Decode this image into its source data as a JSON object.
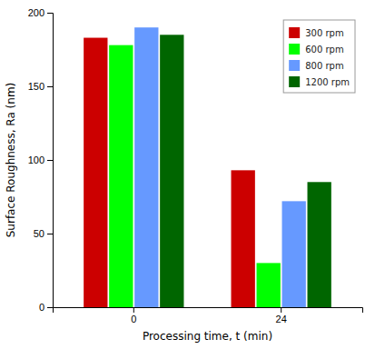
{
  "chart_data": {
    "type": "bar",
    "xlabel": "Processing time, t (min)",
    "ylabel": "Surface Roughness, Ra (nm)",
    "categories": [
      "0",
      "24"
    ],
    "series": [
      {
        "name": "300 rpm",
        "color": "#CC0000",
        "values": [
          183,
          93
        ]
      },
      {
        "name": "600 rpm",
        "color": "#00FF00",
        "values": [
          178,
          30
        ]
      },
      {
        "name": "800 rpm",
        "color": "#6699FF",
        "values": [
          190,
          72
        ]
      },
      {
        "name": "1200 rpm",
        "color": "#006600",
        "values": [
          185,
          85
        ]
      }
    ],
    "ylim": [
      0,
      200
    ],
    "yticks": [
      0,
      50,
      100,
      150,
      200
    ],
    "grid": false,
    "legend": "upper right"
  }
}
